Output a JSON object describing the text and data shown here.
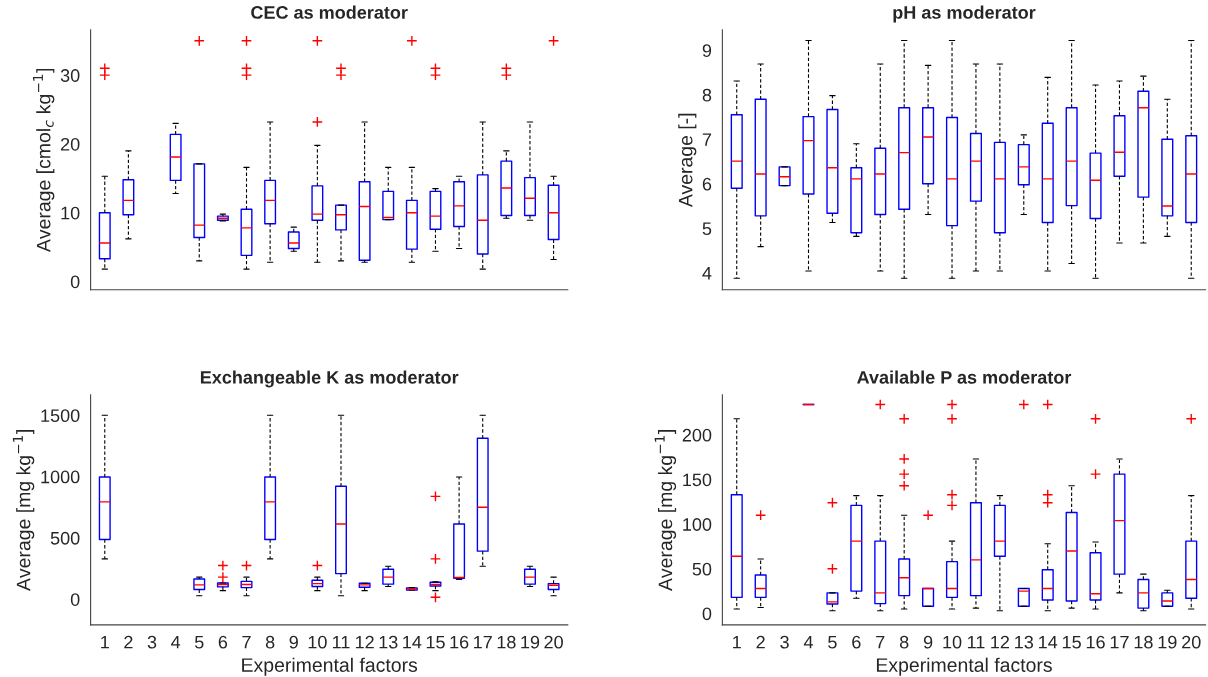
{
  "chart_data": [
    {
      "type": "box",
      "title": "CEC as moderator",
      "ylabel": "Average [cmol$_{c}$ kg$^{−1}$]",
      "categories": [
        "1",
        "2",
        "3",
        "4",
        "5",
        "6",
        "7",
        "8",
        "9",
        "10",
        "11",
        "12",
        "13",
        "14",
        "15",
        "16",
        "17",
        "18",
        "19",
        "20"
      ],
      "ylim": [
        -1.2,
        36.6
      ],
      "yticks": [
        0,
        10,
        20,
        30
      ],
      "tick_labels": "y",
      "series": [
        {
          "color": "#0000ff",
          "boxes": [
            {
              "low": 1.8,
              "q1": 3.3,
              "median": 5.6,
              "q3": 10,
              "high": 15.3,
              "outliers": [
                30,
                31
              ]
            },
            {
              "low": 6.2,
              "q1": 9.7,
              "median": 11.8,
              "q3": 14.8,
              "high": 19
            },
            null,
            {
              "low": 12.8,
              "q1": 14.7,
              "median": 18.1,
              "q3": 21.4,
              "high": 23
            },
            {
              "low": 3,
              "q1": 6.4,
              "median": 8.2,
              "q3": 17.1,
              "high": 17.1,
              "outliers": [
                35
              ]
            },
            {
              "low": 8.8,
              "q1": 8.9,
              "median": 9.2,
              "q3": 9.5,
              "high": 9.8
            },
            {
              "low": 1.8,
              "q1": 3.8,
              "median": 7.8,
              "q3": 10.5,
              "high": 16.6,
              "outliers": [
                30,
                31,
                35
              ]
            },
            {
              "low": 2.8,
              "q1": 8.4,
              "median": 11.8,
              "q3": 14.7,
              "high": 23.2
            },
            {
              "low": 4.4,
              "q1": 4.8,
              "median": 5.6,
              "q3": 7.2,
              "high": 7.9
            },
            {
              "low": 2.8,
              "q1": 8.9,
              "median": 9.8,
              "q3": 13.9,
              "high": 19.8,
              "outliers": [
                23.2,
                35
              ]
            },
            {
              "low": 3,
              "q1": 7.5,
              "median": 9.7,
              "q3": 11.1,
              "high": 11.1,
              "outliers": [
                30,
                31
              ]
            },
            {
              "low": 2.8,
              "q1": 3.1,
              "median": 10.9,
              "q3": 14.5,
              "high": 23.2
            },
            {
              "low": 9,
              "q1": 9,
              "median": 9.3,
              "q3": 13.1,
              "high": 16.6
            },
            {
              "low": 2.8,
              "q1": 4.7,
              "median": 10,
              "q3": 11.8,
              "high": 16.6,
              "outliers": [
                35
              ]
            },
            {
              "low": 4.4,
              "q1": 7.6,
              "median": 9.5,
              "q3": 13.1,
              "high": 13.5,
              "outliers": [
                30,
                31
              ]
            },
            {
              "low": 4.8,
              "q1": 8,
              "median": 11,
              "q3": 14.5,
              "high": 15.3
            },
            {
              "low": 1.8,
              "q1": 4,
              "median": 8.9,
              "q3": 15.5,
              "high": 23.2
            },
            {
              "low": 9.2,
              "q1": 9.6,
              "median": 13.6,
              "q3": 17.5,
              "high": 19,
              "outliers": [
                30,
                31
              ]
            },
            {
              "low": 8.9,
              "q1": 9.6,
              "median": 12.1,
              "q3": 15.1,
              "high": 23.2
            },
            {
              "low": 3.2,
              "q1": 6.1,
              "median": 10,
              "q3": 14,
              "high": 15.3,
              "outliers": [
                35
              ]
            }
          ]
        }
      ]
    },
    {
      "type": "box",
      "title": "pH as moderator",
      "ylabel": "Average [-]",
      "categories": [
        "1",
        "2",
        "3",
        "4",
        "5",
        "6",
        "7",
        "8",
        "9",
        "10",
        "11",
        "12",
        "13",
        "14",
        "15",
        "16",
        "17",
        "18",
        "19",
        "20"
      ],
      "ylim": [
        3.62,
        9.46
      ],
      "yticks": [
        4,
        5,
        6,
        7,
        8,
        9
      ],
      "tick_labels": "y",
      "series": [
        {
          "color": "#0000ff",
          "boxes": [
            {
              "low": 3.88,
              "q1": 5.9,
              "median": 6.51,
              "q3": 7.55,
              "high": 8.31
            },
            {
              "low": 4.59,
              "q1": 5.28,
              "median": 6.22,
              "q3": 7.9,
              "high": 8.69
            },
            {
              "low": 5.96,
              "q1": 5.96,
              "median": 6.16,
              "q3": 6.38,
              "high": 6.38
            },
            {
              "low": 4.04,
              "q1": 5.77,
              "median": 6.97,
              "q3": 7.51,
              "high": 9.22
            },
            {
              "low": 5.13,
              "q1": 5.34,
              "median": 6.36,
              "q3": 7.67,
              "high": 7.98
            },
            {
              "low": 4.82,
              "q1": 4.9,
              "median": 6.11,
              "q3": 6.36,
              "high": 6.9
            },
            {
              "low": 4.04,
              "q1": 5.31,
              "median": 6.22,
              "q3": 6.8,
              "high": 8.69
            },
            {
              "low": 3.88,
              "q1": 5.43,
              "median": 6.7,
              "q3": 7.71,
              "high": 9.22
            },
            {
              "low": 5.31,
              "q1": 6.0,
              "median": 7.05,
              "q3": 7.71,
              "high": 8.66
            },
            {
              "low": 3.88,
              "q1": 5.06,
              "median": 6.11,
              "q3": 7.49,
              "high": 9.22
            },
            {
              "low": 4.04,
              "q1": 5.61,
              "median": 6.51,
              "q3": 7.13,
              "high": 8.69
            },
            {
              "low": 4.04,
              "q1": 4.9,
              "median": 6.11,
              "q3": 6.93,
              "high": 8.69
            },
            {
              "low": 5.31,
              "q1": 5.98,
              "median": 6.38,
              "q3": 6.88,
              "high": 7.1
            },
            {
              "low": 4.04,
              "q1": 5.13,
              "median": 6.11,
              "q3": 7.36,
              "high": 8.39
            },
            {
              "low": 4.21,
              "q1": 5.51,
              "median": 6.51,
              "q3": 7.71,
              "high": 9.22
            },
            {
              "low": 3.88,
              "q1": 5.22,
              "median": 6.08,
              "q3": 6.69,
              "high": 8.22
            },
            {
              "low": 4.67,
              "q1": 6.17,
              "median": 6.71,
              "q3": 7.53,
              "high": 8.31
            },
            {
              "low": 4.67,
              "q1": 5.7,
              "median": 7.71,
              "q3": 8.08,
              "high": 8.42
            },
            {
              "low": 4.82,
              "q1": 5.28,
              "median": 5.5,
              "q3": 7.0,
              "high": 7.9
            },
            {
              "low": 3.88,
              "q1": 5.13,
              "median": 6.22,
              "q3": 7.08,
              "high": 9.22
            }
          ]
        }
      ]
    },
    {
      "type": "box",
      "title": "Exchangeable K as moderator",
      "xlabel": "Experimental factors",
      "ylabel": "Average [mg kg$^{−1}$]",
      "categories": [
        "1",
        "2",
        "3",
        "4",
        "5",
        "6",
        "7",
        "8",
        "9",
        "10",
        "11",
        "12",
        "13",
        "14",
        "15",
        "16",
        "17",
        "18",
        "19",
        "20"
      ],
      "ylim": [
        -209,
        1668
      ],
      "yticks": [
        0,
        500,
        1000,
        1500
      ],
      "series": [
        {
          "color": "#0000ff",
          "boxes": [
            {
              "low": 329,
              "q1": 487,
              "median": 794,
              "q3": 997,
              "high": 1500
            },
            null,
            null,
            null,
            {
              "low": 28,
              "q1": 79,
              "median": 117,
              "q3": 165,
              "high": 180
            },
            {
              "low": 70,
              "q1": 101,
              "median": 120,
              "q3": 133,
              "high": 133,
              "outliers": [
                180,
                275
              ]
            },
            {
              "low": 28,
              "q1": 95,
              "median": 120,
              "q3": 146,
              "high": 180,
              "outliers": [
                275
              ]
            },
            {
              "low": 329,
              "q1": 487,
              "median": 794,
              "q3": 997,
              "high": 1500
            },
            null,
            {
              "low": 70,
              "q1": 104,
              "median": 127,
              "q3": 155,
              "high": 180,
              "outliers": [
                275
              ]
            },
            {
              "low": 28,
              "q1": 209,
              "median": 614,
              "q3": 921,
              "high": 1500
            },
            {
              "low": 70,
              "q1": 98,
              "median": 117,
              "q3": 130,
              "high": 130
            },
            {
              "low": 104,
              "q1": 123,
              "median": 180,
              "q3": 244,
              "high": 269
            },
            {
              "low": 75,
              "q1": 75,
              "median": 82,
              "q3": 92,
              "high": 95
            },
            {
              "low": 70,
              "q1": 108,
              "median": 120,
              "q3": 139,
              "high": 142,
              "outliers": [
                16,
                329,
                839
              ]
            },
            {
              "low": 161,
              "q1": 171,
              "median": 177,
              "q3": 614,
              "high": 997
            },
            {
              "low": 269,
              "q1": 392,
              "median": 750,
              "q3": 1313,
              "high": 1500
            },
            null,
            {
              "low": 104,
              "q1": 123,
              "median": 180,
              "q3": 244,
              "high": 269
            },
            {
              "low": 28,
              "q1": 79,
              "median": 114,
              "q3": 127,
              "high": 180
            }
          ]
        }
      ]
    },
    {
      "type": "box",
      "title": "Available P as moderator",
      "xlabel": "Experimental factors",
      "ylabel": "Average [mg kg$^{−1}$]",
      "categories": [
        "1",
        "2",
        "3",
        "4",
        "5",
        "6",
        "7",
        "8",
        "9",
        "10",
        "11",
        "12",
        "13",
        "14",
        "15",
        "16",
        "17",
        "18",
        "19",
        "20"
      ],
      "ylim": [
        -12.8,
        245
      ],
      "yticks": [
        0,
        50,
        100,
        150,
        200
      ],
      "series": [
        {
          "color": "#0000ff",
          "boxes": [
            {
              "low": 5,
              "q1": 18,
              "median": 64,
              "q3": 133,
              "high": 218
            },
            {
              "low": 6.6,
              "q1": 18,
              "median": 28,
              "q3": 43,
              "high": 61,
              "outliers": [
                110
              ]
            },
            null,
            {
              "low": 234,
              "q1": 234,
              "median": 234,
              "q3": 234,
              "high": 234
            },
            {
              "low": 3,
              "q1": 10.6,
              "median": 13,
              "q3": 23,
              "high": 23,
              "outliers": [
                50,
                124
              ]
            },
            {
              "low": 17,
              "q1": 25,
              "median": 81,
              "q3": 121,
              "high": 132
            },
            {
              "low": 3,
              "q1": 11,
              "median": 23,
              "q3": 81,
              "high": 132,
              "outliers": [
                234
              ]
            },
            {
              "low": 5,
              "q1": 20,
              "median": 40,
              "q3": 61,
              "high": 110,
              "outliers": [
                143,
                156,
                173,
                218
              ]
            },
            {
              "low": 8,
              "q1": 8,
              "median": 28,
              "q3": 28,
              "high": 28,
              "outliers": [
                110
              ]
            },
            {
              "low": 5,
              "q1": 18,
              "median": 28,
              "q3": 58,
              "high": 81,
              "outliers": [
                121,
                133,
                218,
                234
              ]
            },
            {
              "low": 6,
              "q1": 20,
              "median": 60,
              "q3": 124,
              "high": 173
            },
            {
              "low": 3,
              "q1": 64,
              "median": 81,
              "q3": 121,
              "high": 132
            },
            {
              "low": 8,
              "q1": 8,
              "median": 25,
              "q3": 28,
              "high": 28,
              "outliers": [
                234
              ]
            },
            {
              "low": 3,
              "q1": 15,
              "median": 28,
              "q3": 49,
              "high": 78,
              "outliers": [
                124,
                133,
                234
              ]
            },
            {
              "low": 6,
              "q1": 14,
              "median": 70,
              "q3": 113,
              "high": 143
            },
            {
              "low": 5,
              "q1": 15,
              "median": 22,
              "q3": 68,
              "high": 80,
              "outliers": [
                156,
                218
              ]
            },
            {
              "low": 23,
              "q1": 44,
              "median": 104,
              "q3": 156,
              "high": 173
            },
            {
              "low": 3,
              "q1": 6,
              "median": 23,
              "q3": 38,
              "high": 44
            },
            {
              "low": 8,
              "q1": 8,
              "median": 14,
              "q3": 23,
              "high": 26
            },
            {
              "low": 5,
              "q1": 17,
              "median": 38,
              "q3": 81,
              "high": 132,
              "outliers": [
                218
              ]
            }
          ]
        }
      ]
    }
  ]
}
